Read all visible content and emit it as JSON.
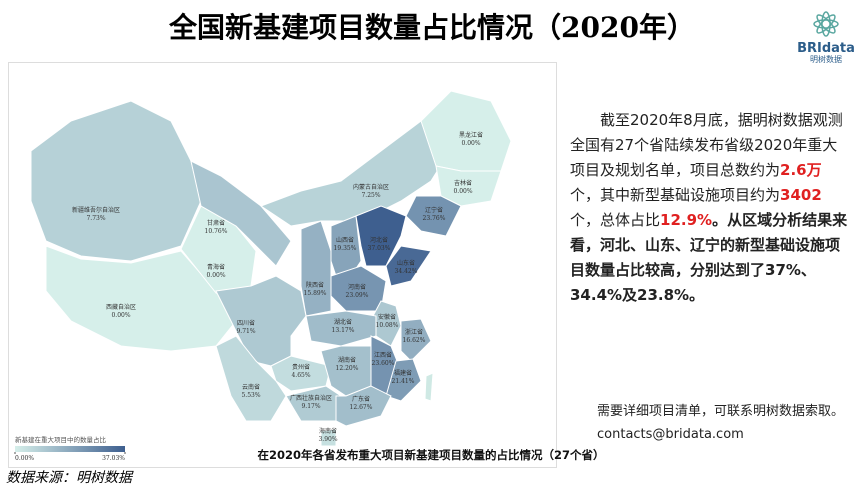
{
  "header": {
    "title": "全国新基建项目数量占比情况（2020年）",
    "logo": "BRIdata",
    "logo_sub": "明树数据"
  },
  "map": {
    "caption": "在2020年各省发布重大项目新基建项目数量的占比情况（27个省）",
    "legend": {
      "title": "新基建在重大项目中的数量占比",
      "lim": [
        0,
        37.03
      ],
      "ticks": [
        {
          "value": 0,
          "label": "0.00%"
        },
        {
          "value": 37.03,
          "label": "37.03%"
        }
      ]
    },
    "regions": [
      {
        "name": "新疆维吾尔自治区",
        "value": 7.73,
        "value_label": "7.73%"
      },
      {
        "name": "西藏自治区",
        "value": 0,
        "value_label": "0.00%"
      },
      {
        "name": "青海省",
        "value": 0,
        "value_label": "0.00%"
      },
      {
        "name": "甘肃省",
        "value": 10.76,
        "value_label": "10.76%"
      },
      {
        "name": "内蒙古自治区",
        "value": 7.25,
        "value_label": "7.25%"
      },
      {
        "name": "黑龙江省",
        "value": 0,
        "value_label": "0.00%"
      },
      {
        "name": "吉林省",
        "value": 0,
        "value_label": "0.00%"
      },
      {
        "name": "辽宁省",
        "value": 23.76,
        "value_label": "23.76%"
      },
      {
        "name": "陕西省",
        "value": 15.89,
        "value_label": "15.89%"
      },
      {
        "name": "山西省",
        "value": 19.35,
        "value_label": "19.35%"
      },
      {
        "name": "河北省",
        "value": 37.03,
        "value_label": "37.03%"
      },
      {
        "name": "山东省",
        "value": 34.42,
        "value_label": "34.42%"
      },
      {
        "name": "河南省",
        "value": 23.09,
        "value_label": "23.09%"
      },
      {
        "name": "安徽省",
        "value": 10.08,
        "value_label": "10.08%"
      },
      {
        "name": "湖北省",
        "value": 13.17,
        "value_label": "13.17%"
      },
      {
        "name": "四川省",
        "value": 9.71,
        "value_label": "9.71%"
      },
      {
        "name": "贵州省",
        "value": 4.65,
        "value_label": "4.65%"
      },
      {
        "name": "云南省",
        "value": 5.53,
        "value_label": "5.53%"
      },
      {
        "name": "湖南省",
        "value": 12.2,
        "value_label": "12.20%"
      },
      {
        "name": "江西省",
        "value": 23.6,
        "value_label": "23.60%"
      },
      {
        "name": "浙江省",
        "value": 16.62,
        "value_label": "16.62%"
      },
      {
        "name": "福建省",
        "value": 21.41,
        "value_label": "21.41%"
      },
      {
        "name": "广西壮族自治区",
        "value": 9.17,
        "value_label": "9.17%"
      },
      {
        "name": "广东省",
        "value": 12.67,
        "value_label": "12.67%"
      },
      {
        "name": "海南省",
        "value": 3.9,
        "value_label": "3.90%"
      }
    ]
  },
  "text": {
    "p1": "截至2020年8月底，据明树数据观测全国有27个省陆续发布省级2020年重大项目及规划名单，项目总数约为",
    "h1": "2.6万",
    "p2": "个，其中新型基础设施项目约为",
    "h2": "3402",
    "p3": "个，总体占比",
    "h3": "12.9%",
    "p4": "。从区域分析结果来看，河北、山东、辽宁的新型基础设施项目数量占比较高，分别达到了37%、34.4%及23.8%。",
    "contact1": "需要详细项目清单，可联系明树数据索取。",
    "contact2": "contacts@bridata.com"
  },
  "footer": {
    "source": "数据来源：明树数据"
  }
}
